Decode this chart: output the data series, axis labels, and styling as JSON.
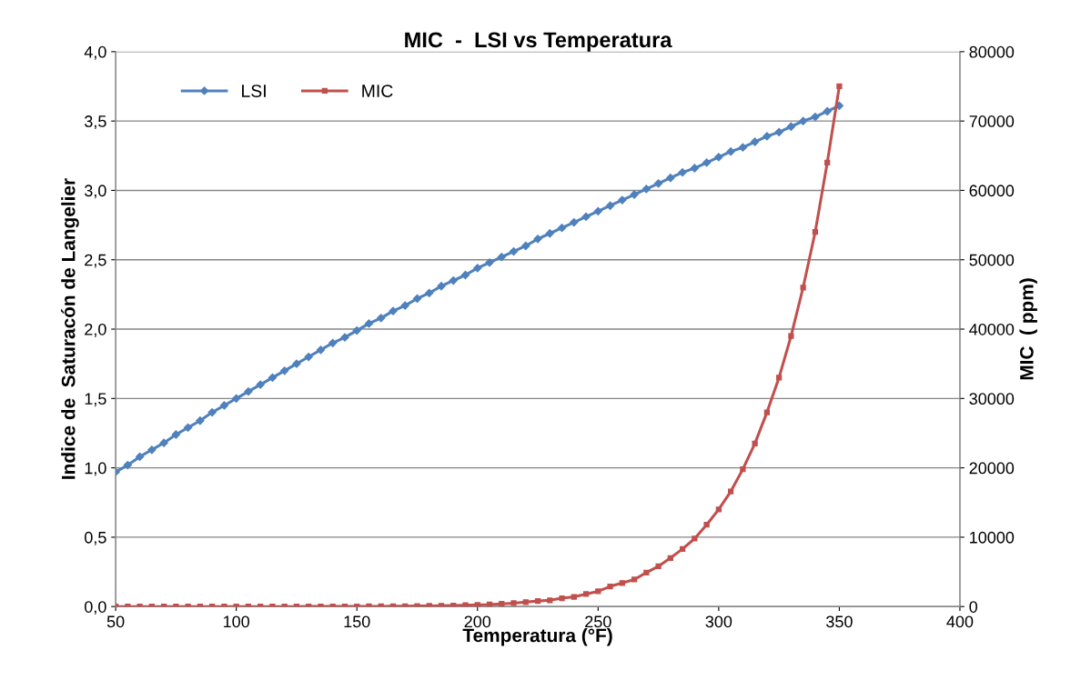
{
  "chart_data": {
    "type": "line",
    "title": "MIC  -  LSI vs Temperatura",
    "xlabel": "Temperatura (°F)",
    "ylabel": "Indice de  Saturacón de Langelier",
    "y2label": "MIC  ( ppm)",
    "x": [
      50,
      55,
      60,
      65,
      70,
      75,
      80,
      85,
      90,
      95,
      100,
      105,
      110,
      115,
      120,
      125,
      130,
      135,
      140,
      145,
      150,
      155,
      160,
      165,
      170,
      175,
      180,
      185,
      190,
      195,
      200,
      205,
      210,
      215,
      220,
      225,
      230,
      235,
      240,
      245,
      250,
      255,
      260,
      265,
      270,
      275,
      280,
      285,
      290,
      295,
      300,
      305,
      310,
      315,
      320,
      325,
      330,
      335,
      340,
      345,
      350
    ],
    "series": [
      {
        "name": "LSI",
        "color": "#4f81bd",
        "marker": "diamond",
        "values": [
          0.97,
          1.02,
          1.08,
          1.13,
          1.18,
          1.24,
          1.29,
          1.34,
          1.4,
          1.45,
          1.5,
          1.55,
          1.6,
          1.65,
          1.7,
          1.75,
          1.8,
          1.85,
          1.9,
          1.94,
          1.99,
          2.04,
          2.08,
          2.13,
          2.17,
          2.22,
          2.26,
          2.31,
          2.35,
          2.39,
          2.44,
          2.48,
          2.52,
          2.56,
          2.6,
          2.65,
          2.69,
          2.73,
          2.77,
          2.81,
          2.85,
          2.89,
          2.93,
          2.97,
          3.01,
          3.05,
          3.09,
          3.13,
          3.16,
          3.2,
          3.24,
          3.28,
          3.31,
          3.35,
          3.39,
          3.42,
          3.46,
          3.5,
          3.53,
          3.57,
          3.61
        ]
      },
      {
        "name": "MIC",
        "color": "#c0504d",
        "marker": "square",
        "axis": "y2",
        "values": [
          0,
          0,
          0,
          0,
          0,
          0,
          0,
          0,
          0,
          0,
          0,
          0,
          0,
          0,
          0,
          0,
          10,
          10,
          15,
          20,
          25,
          30,
          40,
          50,
          60,
          80,
          100,
          120,
          150,
          200,
          250,
          300,
          400,
          500,
          650,
          800,
          900,
          1200,
          1400,
          1800,
          2200,
          2900,
          3400,
          3900,
          4900,
          5800,
          7000,
          8300,
          9800,
          11800,
          14000,
          16600,
          19800,
          23500,
          28000,
          33000,
          39000,
          46000,
          54000,
          64000,
          75000
        ]
      }
    ],
    "xlim": [
      50,
      400
    ],
    "xticks": [
      50,
      100,
      150,
      200,
      250,
      300,
      350,
      400
    ],
    "ylim": [
      0,
      4
    ],
    "yticks": [
      {
        "value": 0,
        "label": "0,0"
      },
      {
        "value": 0.5,
        "label": "0,5"
      },
      {
        "value": 1,
        "label": "1,0"
      },
      {
        "value": 1.5,
        "label": "1,5"
      },
      {
        "value": 2,
        "label": "2,0"
      },
      {
        "value": 2.5,
        "label": "2,5"
      },
      {
        "value": 3,
        "label": "3,0"
      },
      {
        "value": 3.5,
        "label": "3,5"
      },
      {
        "value": 4,
        "label": "4,0"
      }
    ],
    "y2lim": [
      0,
      80000
    ],
    "y2ticks": [
      0,
      10000,
      20000,
      30000,
      40000,
      50000,
      60000,
      70000,
      80000
    ],
    "grid": "y",
    "legend": "top left",
    "line_style": "solid"
  }
}
